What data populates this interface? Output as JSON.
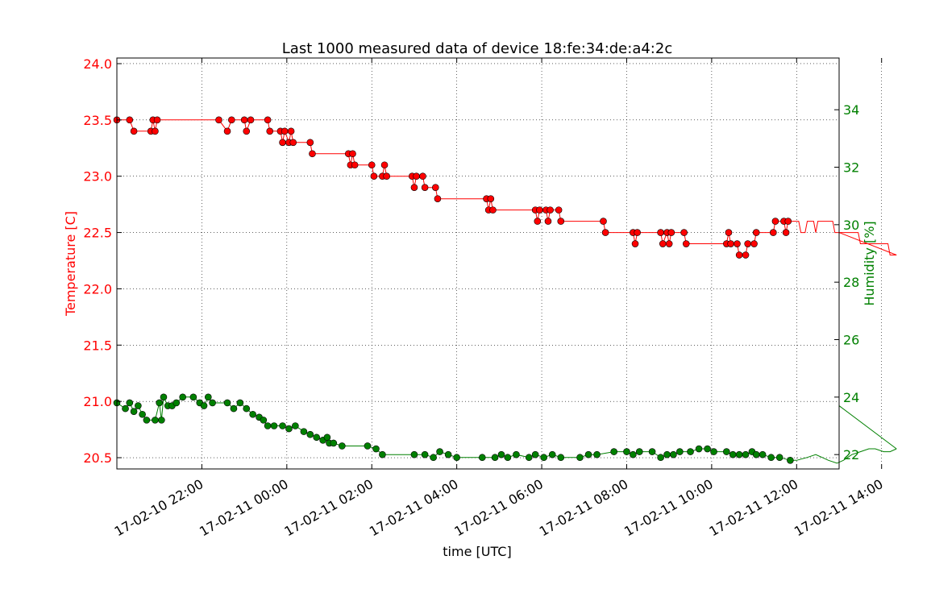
{
  "chart_data": {
    "type": "line",
    "title": "Last 1000 measured data of device 18:fe:34:de:a4:2c",
    "xlabel": "time [UTC]",
    "ylabel_left": "Temperature [C]",
    "ylabel_right": "Humidity [%]",
    "x_ticks": [
      "17-02-10 22:00",
      "17-02-11 00:00",
      "17-02-11 02:00",
      "17-02-11 04:00",
      "17-02-11 06:00",
      "17-02-11 08:00",
      "17-02-11 10:00",
      "17-02-11 12:00",
      "17-02-11 14:00"
    ],
    "y_left_ticks": [
      "20.5",
      "21.0",
      "21.5",
      "22.0",
      "22.5",
      "23.0",
      "23.5",
      "24.0"
    ],
    "y_right_ticks": [
      "22",
      "24",
      "26",
      "28",
      "30",
      "32",
      "34"
    ],
    "xlim_hours": [
      -2.5,
      14.5
    ],
    "ylim_left": [
      20.4,
      24.05
    ],
    "ylim_right": [
      21.5,
      35.8
    ],
    "grid": true,
    "colors": {
      "temperature": "#ff0000",
      "humidity": "#008000"
    },
    "series": [
      {
        "axis": "left",
        "color": "#ff0000",
        "points": [
          [
            -2.5,
            23.5
          ],
          [
            -2.2,
            23.5
          ],
          [
            -2.1,
            23.4
          ],
          [
            -1.7,
            23.4
          ],
          [
            -1.65,
            23.5
          ],
          [
            -1.6,
            23.4
          ],
          [
            -1.55,
            23.5
          ],
          [
            -0.1,
            23.5
          ],
          [
            0.1,
            23.4
          ],
          [
            0.2,
            23.5
          ],
          [
            0.5,
            23.5
          ],
          [
            0.55,
            23.4
          ],
          [
            0.65,
            23.5
          ],
          [
            1.05,
            23.5
          ],
          [
            1.1,
            23.4
          ],
          [
            1.35,
            23.4
          ],
          [
            1.4,
            23.3
          ],
          [
            1.45,
            23.4
          ],
          [
            1.55,
            23.3
          ],
          [
            1.6,
            23.4
          ],
          [
            1.65,
            23.3
          ],
          [
            2.05,
            23.3
          ],
          [
            2.1,
            23.2
          ],
          [
            2.95,
            23.2
          ],
          [
            3.0,
            23.1
          ],
          [
            3.05,
            23.2
          ],
          [
            3.1,
            23.1
          ],
          [
            3.5,
            23.1
          ],
          [
            3.55,
            23.0
          ],
          [
            3.75,
            23.0
          ],
          [
            3.8,
            23.1
          ],
          [
            3.85,
            23.0
          ],
          [
            4.45,
            23.0
          ],
          [
            4.5,
            22.9
          ],
          [
            4.55,
            23.0
          ],
          [
            4.7,
            23.0
          ],
          [
            4.75,
            22.9
          ],
          [
            5.0,
            22.9
          ],
          [
            5.05,
            22.8
          ],
          [
            6.2,
            22.8
          ],
          [
            6.25,
            22.7
          ],
          [
            6.3,
            22.8
          ],
          [
            6.35,
            22.7
          ],
          [
            7.35,
            22.7
          ],
          [
            7.4,
            22.6
          ],
          [
            7.45,
            22.7
          ],
          [
            7.6,
            22.7
          ],
          [
            7.65,
            22.6
          ],
          [
            7.7,
            22.7
          ],
          [
            7.9,
            22.7
          ],
          [
            7.95,
            22.6
          ],
          [
            8.95,
            22.6
          ],
          [
            9.0,
            22.5
          ],
          [
            9.65,
            22.5
          ],
          [
            9.7,
            22.4
          ],
          [
            9.75,
            22.5
          ],
          [
            10.3,
            22.5
          ],
          [
            10.35,
            22.4
          ],
          [
            10.45,
            22.5
          ],
          [
            10.5,
            22.4
          ],
          [
            10.55,
            22.5
          ],
          [
            10.85,
            22.5
          ],
          [
            10.9,
            22.4
          ],
          [
            11.85,
            22.4
          ],
          [
            11.9,
            22.5
          ],
          [
            11.95,
            22.4
          ],
          [
            12.1,
            22.4
          ],
          [
            12.15,
            22.3
          ],
          [
            12.3,
            22.3
          ],
          [
            12.35,
            22.4
          ],
          [
            12.5,
            22.4
          ],
          [
            12.55,
            22.5
          ],
          [
            12.95,
            22.5
          ],
          [
            13.0,
            22.6
          ],
          [
            13.2,
            22.6
          ],
          [
            13.25,
            22.5
          ],
          [
            13.3,
            22.6
          ],
          [
            13.55,
            22.6
          ],
          [
            13.6,
            22.5
          ],
          [
            13.7,
            22.5
          ],
          [
            13.75,
            22.6
          ],
          [
            13.9,
            22.6
          ],
          [
            13.95,
            22.5
          ],
          [
            14.0,
            22.6
          ],
          [
            14.35,
            22.6
          ],
          [
            14.4,
            22.5
          ],
          [
            14.95,
            22.5
          ],
          [
            15.0,
            22.4
          ],
          [
            15.65,
            22.4
          ],
          [
            15.7,
            22.3
          ],
          [
            15.85,
            22.3
          ]
        ]
      },
      {
        "axis": "right",
        "color": "#008000",
        "points": [
          [
            -2.5,
            23.8
          ],
          [
            -2.3,
            23.6
          ],
          [
            -2.2,
            23.8
          ],
          [
            -2.1,
            23.5
          ],
          [
            -2.0,
            23.7
          ],
          [
            -1.9,
            23.4
          ],
          [
            -1.8,
            23.2
          ],
          [
            -1.6,
            23.2
          ],
          [
            -1.5,
            23.8
          ],
          [
            -1.45,
            23.2
          ],
          [
            -1.4,
            24.0
          ],
          [
            -1.3,
            23.7
          ],
          [
            -1.2,
            23.7
          ],
          [
            -1.1,
            23.8
          ],
          [
            -0.95,
            24.0
          ],
          [
            -0.7,
            24.0
          ],
          [
            -0.55,
            23.8
          ],
          [
            -0.45,
            23.7
          ],
          [
            -0.35,
            24.0
          ],
          [
            -0.25,
            23.8
          ],
          [
            0.1,
            23.8
          ],
          [
            0.25,
            23.6
          ],
          [
            0.4,
            23.8
          ],
          [
            0.55,
            23.6
          ],
          [
            0.7,
            23.4
          ],
          [
            0.85,
            23.3
          ],
          [
            0.95,
            23.2
          ],
          [
            1.05,
            23.0
          ],
          [
            1.2,
            23.0
          ],
          [
            1.4,
            23.0
          ],
          [
            1.55,
            22.9
          ],
          [
            1.7,
            23.0
          ],
          [
            1.9,
            22.8
          ],
          [
            2.05,
            22.7
          ],
          [
            2.2,
            22.6
          ],
          [
            2.35,
            22.5
          ],
          [
            2.45,
            22.6
          ],
          [
            2.5,
            22.4
          ],
          [
            2.6,
            22.4
          ],
          [
            2.8,
            22.3
          ],
          [
            3.4,
            22.3
          ],
          [
            3.6,
            22.2
          ],
          [
            3.75,
            22.0
          ],
          [
            4.5,
            22.0
          ],
          [
            4.75,
            22.0
          ],
          [
            4.95,
            21.9
          ],
          [
            5.1,
            22.1
          ],
          [
            5.3,
            22.0
          ],
          [
            5.5,
            21.9
          ],
          [
            6.1,
            21.9
          ],
          [
            6.4,
            21.9
          ],
          [
            6.55,
            22.0
          ],
          [
            6.7,
            21.9
          ],
          [
            6.9,
            22.0
          ],
          [
            7.2,
            21.9
          ],
          [
            7.35,
            22.0
          ],
          [
            7.55,
            21.9
          ],
          [
            7.75,
            22.0
          ],
          [
            7.95,
            21.9
          ],
          [
            8.4,
            21.9
          ],
          [
            8.6,
            22.0
          ],
          [
            8.8,
            22.0
          ],
          [
            9.2,
            22.1
          ],
          [
            9.5,
            22.1
          ],
          [
            9.65,
            22.0
          ],
          [
            9.8,
            22.1
          ],
          [
            10.1,
            22.1
          ],
          [
            10.3,
            21.9
          ],
          [
            10.45,
            22.0
          ],
          [
            10.6,
            22.0
          ],
          [
            10.75,
            22.1
          ],
          [
            11.0,
            22.1
          ],
          [
            11.2,
            22.2
          ],
          [
            11.4,
            22.2
          ],
          [
            11.55,
            22.1
          ],
          [
            11.85,
            22.1
          ],
          [
            12.0,
            22.0
          ],
          [
            12.15,
            22.0
          ],
          [
            12.3,
            22.0
          ],
          [
            12.45,
            22.1
          ],
          [
            12.55,
            22.0
          ],
          [
            12.7,
            22.0
          ],
          [
            12.9,
            21.9
          ],
          [
            13.1,
            21.9
          ],
          [
            13.35,
            21.8
          ],
          [
            13.5,
            21.8
          ],
          [
            13.75,
            21.9
          ],
          [
            13.95,
            22.0
          ],
          [
            14.1,
            21.9
          ],
          [
            14.25,
            21.8
          ],
          [
            14.45,
            21.7
          ],
          [
            14.6,
            21.8
          ],
          [
            14.8,
            22.0
          ],
          [
            15.0,
            22.1
          ],
          [
            15.2,
            22.2
          ],
          [
            15.35,
            22.2
          ],
          [
            15.55,
            22.1
          ],
          [
            15.7,
            22.1
          ],
          [
            15.85,
            22.2
          ]
        ]
      }
    ]
  }
}
